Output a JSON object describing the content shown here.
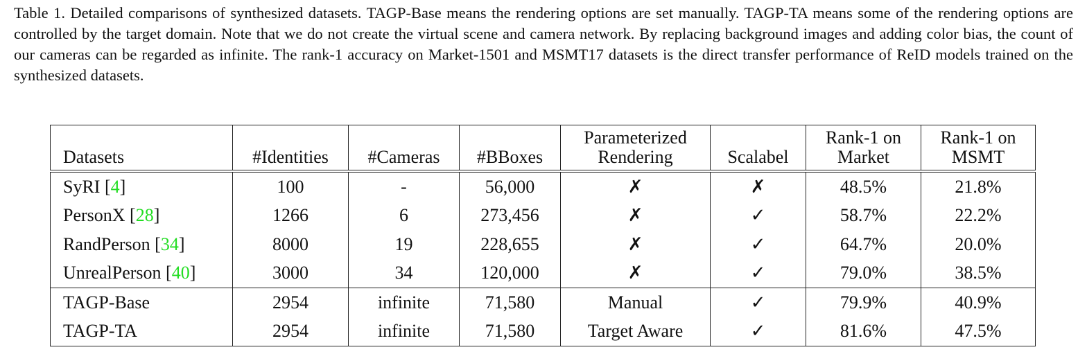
{
  "caption": "Table 1. Detailed comparisons of synthesized datasets. TAGP-Base means the rendering options are set manually. TAGP-TA means some of the rendering options are controlled by the target domain. Note that we do not create the virtual scene and camera network. By replacing background images and adding color bias, the count of our cameras can be regarded as infinite. The rank-1 accuracy on Market-1501 and MSMT17 datasets is the direct transfer performance of ReID models trained on the synthesized datasets.",
  "table": {
    "header": [
      [
        "Datasets"
      ],
      [
        "#Identities"
      ],
      [
        "#Cameras"
      ],
      [
        "#BBoxes"
      ],
      [
        "Parameterized",
        "Rendering"
      ],
      [
        "Scalabel"
      ],
      [
        "Rank-1 on",
        "Market"
      ],
      [
        "Rank-1 on",
        "MSMT"
      ]
    ],
    "groups": [
      [
        [
          [
            "SyRI [",
            "4",
            "]"
          ],
          "100",
          "-",
          "56,000",
          "✗",
          "✗",
          "48.5%",
          "21.8%"
        ],
        [
          [
            "PersonX [",
            "28",
            "]"
          ],
          "1266",
          "6",
          "273,456",
          "✗",
          "✓",
          "58.7%",
          "22.2%"
        ],
        [
          [
            "RandPerson [",
            "34",
            "]"
          ],
          "8000",
          "19",
          "228,655",
          "✗",
          "✓",
          "64.7%",
          "20.0%"
        ],
        [
          [
            "UnrealPerson [",
            "40",
            "]"
          ],
          "3000",
          "34",
          "120,000",
          "✗",
          "✓",
          "79.0%",
          "38.5%"
        ]
      ],
      [
        [
          [
            "TAGP-Base"
          ],
          "2954",
          "infinite",
          "71,580",
          "Manual",
          "✓",
          "79.9%",
          "40.9%"
        ],
        [
          [
            "TAGP-TA"
          ],
          "2954",
          "infinite",
          "71,580",
          "Target Aware",
          "✓",
          "81.6%",
          "47.5%"
        ]
      ]
    ]
  }
}
